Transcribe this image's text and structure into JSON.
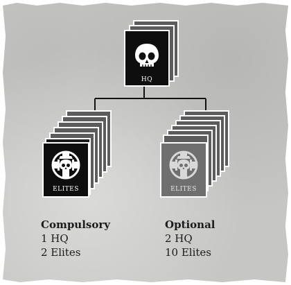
{
  "hq": {
    "label": "HQ",
    "icon": "skull-icon"
  },
  "compulsory_card": {
    "label": "ELITES",
    "icon": "skull-emblem-icon"
  },
  "optional_card": {
    "label": "ELITES",
    "icon": "skull-emblem-icon"
  },
  "compulsory": {
    "heading": "Compulsory",
    "lines": [
      "1 HQ",
      "2 Elites"
    ]
  },
  "optional": {
    "heading": "Optional",
    "lines": [
      "2 HQ",
      "10 Elites"
    ]
  },
  "colors": {
    "card_black": "#0e0e0e",
    "card_grey": "#6f6f6f",
    "stack_grey": "#5c5c5c",
    "line": "#111111"
  }
}
